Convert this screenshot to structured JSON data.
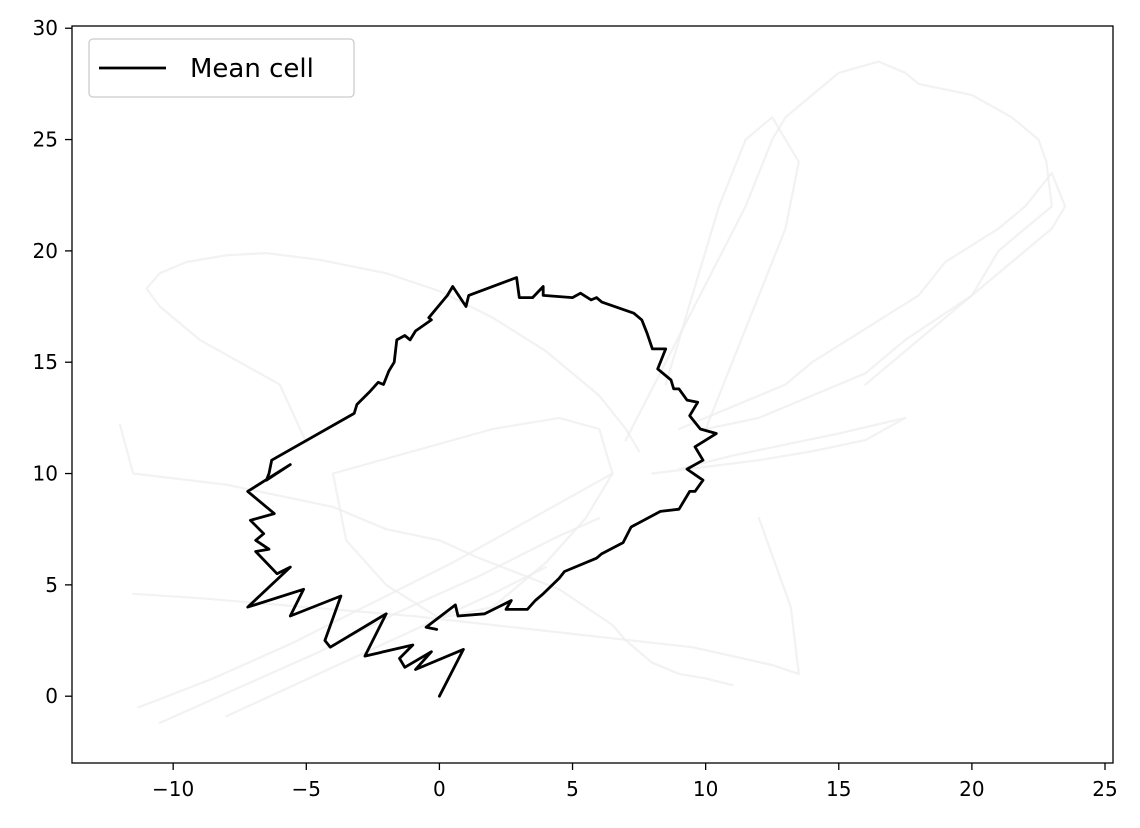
{
  "chart_data": {
    "type": "line",
    "title": "",
    "xlabel": "",
    "ylabel": "",
    "xlim": [
      -13.8,
      25.3
    ],
    "ylim": [
      -3,
      30.1
    ],
    "xticks": [
      -10,
      -5,
      0,
      5,
      10,
      15,
      20,
      25
    ],
    "yticks": [
      0,
      5,
      10,
      15,
      20,
      25,
      30
    ],
    "xtick_labels": [
      "−10",
      "−5",
      "0",
      "5",
      "10",
      "15",
      "20",
      "25"
    ],
    "ytick_labels": [
      "0",
      "5",
      "10",
      "15",
      "20",
      "25",
      "30"
    ],
    "grid": false,
    "legend": {
      "position": "upper-left",
      "entries": [
        "Mean cell"
      ]
    },
    "colors": {
      "mean": "#000000",
      "background": "#eeeeee"
    },
    "series": [
      {
        "name": "Mean cell",
        "x": [
          0.0,
          0.9,
          -0.9,
          -0.3,
          -1.3,
          -1.5,
          -1.0,
          -2.8,
          -2.0,
          -4.1,
          -4.3,
          -3.7,
          -5.6,
          -5.1,
          -7.2,
          -5.6,
          -6.1,
          -6.9,
          -6.4,
          -6.9,
          -6.6,
          -7.1,
          -6.2,
          -7.2,
          -5.6,
          -6.5,
          -6.4,
          -6.3,
          -3.2,
          -3.1,
          -2.6,
          -2.3,
          -2.1,
          -1.9,
          -1.7,
          -1.6,
          -1.3,
          -1.1,
          -0.9,
          -0.3,
          -0.4,
          0.3,
          0.5,
          1.0,
          1.1,
          2.9,
          3.0,
          3.5,
          3.9,
          3.9,
          5.0,
          5.3,
          5.7,
          5.9,
          6.1,
          7.3,
          7.6,
          7.8,
          8.0,
          8.5,
          8.2,
          8.7,
          8.8,
          9.0,
          9.3,
          9.7,
          9.4,
          9.8,
          10.4,
          9.6,
          9.9,
          9.3,
          9.9,
          9.6,
          9.4,
          9.0,
          8.3,
          7.2,
          6.9,
          6.1,
          5.9,
          4.7,
          4.5,
          3.9,
          3.6,
          3.3,
          2.5,
          2.7,
          1.7,
          0.7,
          0.6,
          -0.5,
          -0.1
        ],
        "y": [
          0.0,
          2.1,
          1.2,
          2.0,
          1.3,
          1.7,
          2.3,
          1.8,
          3.7,
          2.2,
          2.5,
          4.5,
          3.6,
          4.8,
          4.0,
          5.8,
          5.5,
          6.5,
          6.6,
          7.0,
          7.3,
          7.9,
          8.2,
          9.2,
          10.4,
          9.7,
          10.0,
          10.6,
          12.7,
          13.1,
          13.7,
          14.1,
          14.0,
          14.6,
          15.0,
          16.0,
          16.2,
          16.0,
          16.4,
          16.9,
          17.0,
          18.0,
          18.4,
          17.5,
          18.0,
          18.8,
          17.9,
          17.9,
          18.4,
          18.0,
          17.9,
          18.1,
          17.8,
          17.9,
          17.7,
          17.2,
          16.9,
          16.3,
          15.6,
          15.6,
          14.7,
          14.2,
          13.8,
          13.8,
          13.3,
          13.2,
          12.6,
          12.0,
          11.8,
          11.2,
          10.6,
          10.2,
          9.7,
          9.2,
          9.2,
          8.4,
          8.3,
          7.6,
          6.9,
          6.4,
          6.2,
          5.6,
          5.3,
          4.6,
          4.3,
          3.9,
          3.9,
          4.3,
          3.7,
          3.6,
          4.1,
          3.1,
          3.0
        ]
      },
      {
        "name": "",
        "x": [
          -12.0,
          -11.5,
          -8.0,
          -6.0,
          -4.0,
          -2.0,
          0.0,
          1.5,
          3.0,
          4.5,
          5.5,
          6.5,
          7.0,
          7.5,
          8.0,
          9.0,
          10.0,
          11.0
        ],
        "y": [
          12.2,
          10.0,
          9.5,
          9.0,
          8.5,
          7.5,
          7.0,
          6.2,
          5.5,
          4.8,
          4.0,
          3.2,
          2.5,
          2.0,
          1.5,
          1.0,
          0.8,
          0.5
        ]
      },
      {
        "name": "",
        "x": [
          -11.5,
          -9.0,
          -7.0,
          -5.0,
          -3.0,
          -1.0,
          0.5,
          2.0,
          3.5,
          5.0,
          6.5,
          8.0,
          9.5,
          11.0,
          12.5,
          13.5,
          13.2,
          12.0
        ],
        "y": [
          4.6,
          4.4,
          4.2,
          4.0,
          3.8,
          3.6,
          3.4,
          3.2,
          3.0,
          2.8,
          2.6,
          2.4,
          2.2,
          1.8,
          1.4,
          1.0,
          4.0,
          8.0
        ]
      },
      {
        "name": "",
        "x": [
          -11.3,
          -10.0,
          -8.5,
          -7.0,
          -5.5,
          -4.0,
          -2.5,
          -1.0,
          0.5,
          2.0,
          3.5,
          5.0,
          6.5
        ],
        "y": [
          -0.5,
          0.1,
          0.8,
          1.6,
          2.4,
          3.3,
          4.2,
          5.1,
          6.0,
          7.0,
          8.0,
          9.0,
          10.0
        ]
      },
      {
        "name": "",
        "x": [
          -10.5,
          -9.0,
          -7.5,
          -6.0,
          -4.5,
          -3.0,
          -1.5,
          0.0,
          1.5,
          3.0,
          4.5,
          6.0
        ],
        "y": [
          -1.2,
          -0.4,
          0.4,
          1.2,
          2.0,
          2.9,
          3.8,
          4.6,
          5.4,
          6.3,
          7.2,
          8.0
        ]
      },
      {
        "name": "",
        "x": [
          -8.0,
          -6.0,
          -4.0,
          -2.0,
          0.0,
          2.0,
          4.0
        ],
        "y": [
          -0.9,
          0.2,
          1.3,
          2.4,
          3.5,
          4.6,
          5.8
        ]
      },
      {
        "name": "",
        "x": [
          -5.0,
          -6.0,
          -9.0,
          -10.5,
          -11.0,
          -10.5,
          -9.5,
          -8.0,
          -6.5,
          -4.5,
          -2.0,
          0.0,
          2.0,
          4.0,
          6.0,
          7.0,
          7.5
        ],
        "y": [
          11.4,
          14.0,
          16.0,
          17.5,
          18.3,
          19.0,
          19.5,
          19.8,
          19.9,
          19.6,
          19.0,
          18.2,
          17.0,
          15.5,
          13.5,
          12.0,
          11.0
        ]
      },
      {
        "name": "",
        "x": [
          9.0,
          11.0,
          13.0,
          14.0,
          16.0,
          18.0,
          19.0,
          21.0,
          22.0,
          23.0,
          23.5,
          23.0,
          22.0,
          21.0,
          20.0,
          19.0,
          18.0,
          17.0,
          16.0
        ],
        "y": [
          12.0,
          13.0,
          14.0,
          15.0,
          16.5,
          18.0,
          19.5,
          21.0,
          22.0,
          23.5,
          22.0,
          21.0,
          20.0,
          19.0,
          18.0,
          17.0,
          16.0,
          15.0,
          14.0
        ]
      },
      {
        "name": "",
        "x": [
          7.0,
          8.5,
          10.0,
          11.5,
          12.5,
          13.0,
          14.0,
          15.0,
          16.5,
          17.5,
          18.0,
          20.0,
          21.5,
          22.5,
          22.8,
          23.0,
          22.0,
          21.0,
          20.0,
          17.5,
          16.0,
          14.0,
          12.0,
          10.0
        ],
        "y": [
          11.5,
          15.0,
          18.5,
          22.0,
          25.0,
          26.0,
          27.0,
          28.0,
          28.5,
          28.0,
          27.5,
          27.0,
          26.0,
          25.0,
          24.0,
          22.0,
          21.0,
          20.0,
          18.0,
          16.0,
          14.5,
          13.5,
          12.5,
          12.0
        ]
      },
      {
        "name": "",
        "x": [
          10.0,
          11.0,
          12.0,
          13.0,
          13.5,
          12.5,
          11.5,
          10.5,
          9.5,
          8.5
        ],
        "y": [
          12.0,
          15.0,
          18.0,
          21.0,
          24.0,
          26.0,
          25.0,
          22.0,
          18.0,
          14.0
        ]
      },
      {
        "name": "",
        "x": [
          8.0,
          10.0,
          12.0,
          14.0,
          16.0,
          17.5,
          15.0,
          13.0,
          11.0,
          9.0
        ],
        "y": [
          10.0,
          10.3,
          10.6,
          11.0,
          11.5,
          12.5,
          11.8,
          11.3,
          10.8,
          10.2
        ]
      },
      {
        "name": "",
        "x": [
          -4.0,
          -1.0,
          2.0,
          4.5,
          6.0,
          6.5,
          5.5,
          4.0,
          2.0,
          0.0,
          -2.0,
          -3.5,
          -4.0
        ],
        "y": [
          10.0,
          11.0,
          12.0,
          12.5,
          12.0,
          10.0,
          8.0,
          6.0,
          4.0,
          3.5,
          5.0,
          7.0,
          10.0
        ]
      }
    ]
  }
}
